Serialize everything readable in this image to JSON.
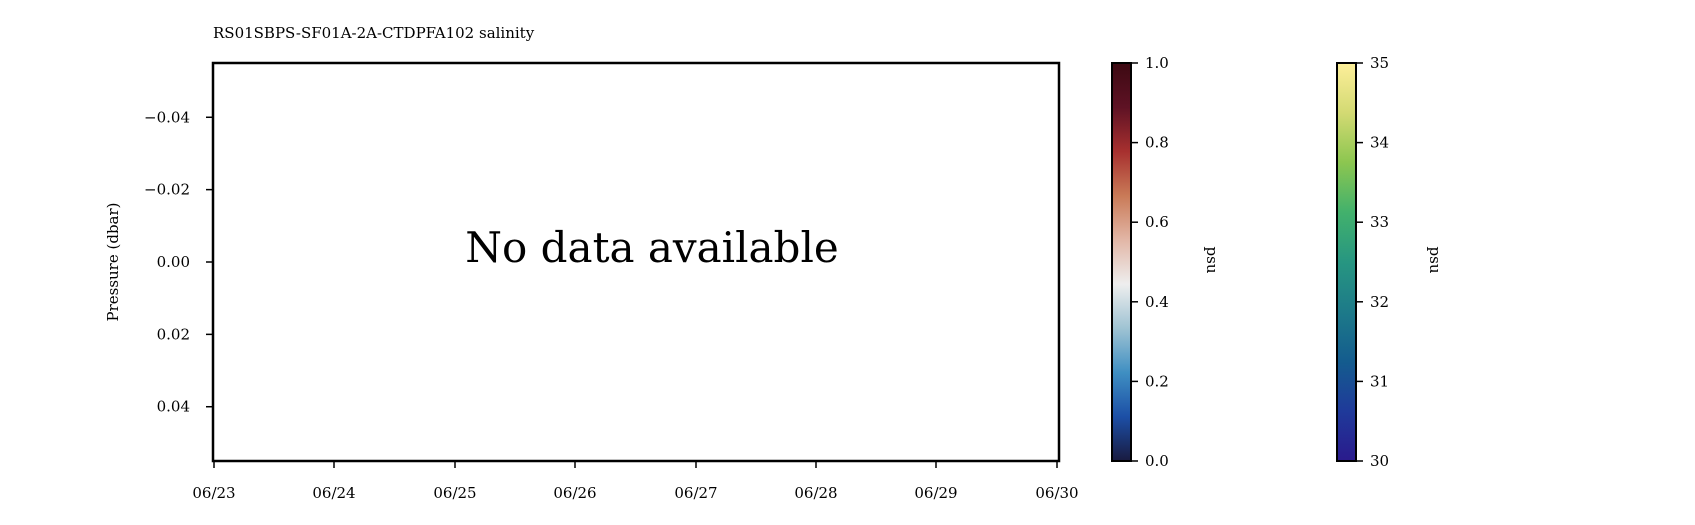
{
  "chart_data": {
    "type": "heatmap",
    "title": "RS01SBPS-SF01A-2A-CTDPFA102 salinity",
    "message": "No data available",
    "ylabel": "Pressure (dbar)",
    "xlabel": "",
    "x_ticks": [
      "06/23",
      "06/24",
      "06/25",
      "06/26",
      "06/27",
      "06/28",
      "06/29",
      "06/30"
    ],
    "y_ticks": [
      "−0.04",
      "−0.02",
      "0.00",
      "0.02",
      "0.04"
    ],
    "y_tick_values": [
      -0.04,
      -0.02,
      0.0,
      0.02,
      0.04
    ],
    "ylim": [
      0.055,
      -0.055
    ],
    "y_inverted": true,
    "values": [],
    "grid": false,
    "colorbars": [
      {
        "label": "psu",
        "colormap": "balance",
        "range": [
          0.0,
          1.0
        ],
        "tick_values": [
          0.0,
          0.2,
          0.4,
          0.6,
          0.8,
          1.0
        ],
        "ticks": [
          "0.0",
          "0.2",
          "0.4",
          "0.6",
          "0.8",
          "1.0"
        ],
        "colors": [
          "#191a3f",
          "#1c4fa6",
          "#3f8fc2",
          "#9fc3d3",
          "#eeeeee",
          "#e2b6a6",
          "#c97a57",
          "#a7302f",
          "#5e1224",
          "#3c0912"
        ]
      },
      {
        "label": "psu",
        "colormap": "haline",
        "range": [
          30,
          35
        ],
        "tick_values": [
          30,
          31,
          32,
          33,
          34,
          35
        ],
        "ticks": [
          "30",
          "31",
          "32",
          "33",
          "34",
          "35"
        ],
        "colors": [
          "#2a1a8c",
          "#1f3a9a",
          "#145c8e",
          "#1d7a89",
          "#279681",
          "#42b16c",
          "#8cc650",
          "#d3da73",
          "#fdef9a"
        ]
      }
    ]
  }
}
